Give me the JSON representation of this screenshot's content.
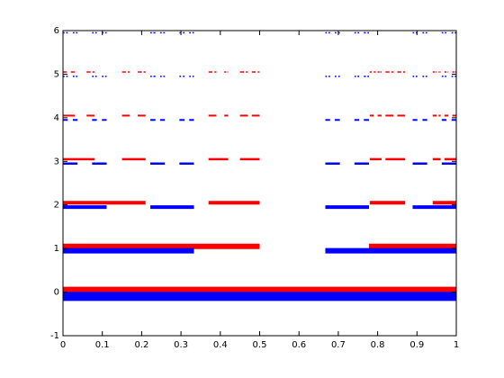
{
  "chart_data": {
    "type": "segments",
    "xlim": [
      0,
      1
    ],
    "xticks": [
      0,
      0.1,
      0.2,
      0.3,
      0.4,
      0.5,
      0.6,
      0.7,
      0.8,
      0.9,
      1
    ],
    "ylim": [
      -1,
      6
    ],
    "yticks": [
      -1,
      0,
      1,
      2,
      3,
      4,
      5,
      6
    ],
    "series": [
      {
        "color": "#ff0000",
        "levels": [
          {
            "y": 0.05,
            "segments": [
              [
                0,
                1
              ]
            ]
          },
          {
            "y": 1.05,
            "segments": [
              [
                0,
                0.5
              ],
              [
                0.778,
                1
              ]
            ]
          },
          {
            "y": 2.05,
            "segments": [
              [
                0,
                0.21
              ],
              [
                0.37,
                0.5
              ],
              [
                0.78,
                0.87
              ],
              [
                0.94,
                1
              ]
            ]
          },
          {
            "y": 3.05,
            "segments": [
              [
                0,
                0.08
              ],
              [
                0.15,
                0.21
              ],
              [
                0.37,
                0.42
              ],
              [
                0.45,
                0.5
              ],
              [
                0.78,
                0.81
              ],
              [
                0.82,
                0.87
              ],
              [
                0.94,
                0.96
              ],
              [
                0.97,
                1
              ]
            ]
          },
          {
            "y": 4.05,
            "segments": [
              [
                0,
                0.03
              ],
              [
                0.06,
                0.08
              ],
              [
                0.15,
                0.17
              ],
              [
                0.19,
                0.21
              ],
              [
                0.37,
                0.39
              ],
              [
                0.41,
                0.42
              ],
              [
                0.45,
                0.47
              ],
              [
                0.48,
                0.5
              ],
              [
                0.78,
                0.79
              ],
              [
                0.8,
                0.81
              ],
              [
                0.82,
                0.84
              ],
              [
                0.85,
                0.87
              ],
              [
                0.94,
                0.95
              ],
              [
                0.955,
                0.96
              ],
              [
                0.97,
                0.98
              ],
              [
                0.99,
                1
              ]
            ]
          },
          {
            "y": 5.05,
            "segments": [
              [
                0,
                0.01
              ],
              [
                0.02,
                0.03
              ],
              [
                0.06,
                0.07
              ],
              [
                0.075,
                0.08
              ],
              [
                0.15,
                0.16
              ],
              [
                0.165,
                0.17
              ],
              [
                0.19,
                0.2
              ],
              [
                0.205,
                0.21
              ],
              [
                0.37,
                0.38
              ],
              [
                0.385,
                0.39
              ],
              [
                0.41,
                0.415
              ],
              [
                0.418,
                0.42
              ],
              [
                0.45,
                0.46
              ],
              [
                0.465,
                0.47
              ],
              [
                0.48,
                0.49
              ],
              [
                0.495,
                0.5
              ],
              [
                0.78,
                0.785
              ],
              [
                0.79,
                0.795
              ],
              [
                0.8,
                0.805
              ],
              [
                0.807,
                0.81
              ],
              [
                0.82,
                0.83
              ],
              [
                0.835,
                0.84
              ],
              [
                0.85,
                0.86
              ],
              [
                0.865,
                0.87
              ],
              [
                0.94,
                0.945
              ],
              [
                0.948,
                0.95
              ],
              [
                0.955,
                0.958
              ],
              [
                0.959,
                0.96
              ],
              [
                0.97,
                0.975
              ],
              [
                0.978,
                0.98
              ],
              [
                0.99,
                0.995
              ],
              [
                0.997,
                1
              ]
            ]
          }
        ]
      },
      {
        "color": "#0000ff",
        "levels": [
          {
            "y": -0.1,
            "segments": [
              [
                0,
                1
              ]
            ]
          },
          {
            "y": 0.95,
            "segments": [
              [
                0,
                0.333
              ],
              [
                0.667,
                1
              ]
            ]
          },
          {
            "y": 1.95,
            "segments": [
              [
                0,
                0.111
              ],
              [
                0.222,
                0.333
              ],
              [
                0.667,
                0.778
              ],
              [
                0.889,
                1
              ]
            ]
          },
          {
            "y": 2.95,
            "segments": [
              [
                0,
                0.037
              ],
              [
                0.074,
                0.111
              ],
              [
                0.222,
                0.259
              ],
              [
                0.296,
                0.333
              ],
              [
                0.667,
                0.704
              ],
              [
                0.741,
                0.778
              ],
              [
                0.889,
                0.926
              ],
              [
                0.963,
                1
              ]
            ]
          },
          {
            "y": 3.95,
            "segments": [
              [
                0,
                0.012
              ],
              [
                0.025,
                0.037
              ],
              [
                0.074,
                0.086
              ],
              [
                0.099,
                0.111
              ],
              [
                0.222,
                0.235
              ],
              [
                0.247,
                0.259
              ],
              [
                0.296,
                0.309
              ],
              [
                0.321,
                0.333
              ],
              [
                0.667,
                0.679
              ],
              [
                0.691,
                0.704
              ],
              [
                0.741,
                0.753
              ],
              [
                0.765,
                0.778
              ],
              [
                0.889,
                0.901
              ],
              [
                0.914,
                0.926
              ],
              [
                0.963,
                0.975
              ],
              [
                0.988,
                1
              ]
            ]
          },
          {
            "y": 4.95,
            "segments": [
              [
                0,
                0.004
              ],
              [
                0.008,
                0.012
              ],
              [
                0.025,
                0.029
              ],
              [
                0.033,
                0.037
              ],
              [
                0.074,
                0.078
              ],
              [
                0.082,
                0.086
              ],
              [
                0.099,
                0.103
              ],
              [
                0.107,
                0.111
              ],
              [
                0.222,
                0.226
              ],
              [
                0.23,
                0.235
              ],
              [
                0.247,
                0.251
              ],
              [
                0.255,
                0.259
              ],
              [
                0.296,
                0.3
              ],
              [
                0.305,
                0.309
              ],
              [
                0.321,
                0.325
              ],
              [
                0.329,
                0.333
              ],
              [
                0.667,
                0.671
              ],
              [
                0.675,
                0.679
              ],
              [
                0.691,
                0.695
              ],
              [
                0.7,
                0.704
              ],
              [
                0.741,
                0.745
              ],
              [
                0.749,
                0.753
              ],
              [
                0.765,
                0.77
              ],
              [
                0.774,
                0.778
              ],
              [
                0.889,
                0.893
              ],
              [
                0.897,
                0.901
              ],
              [
                0.914,
                0.918
              ],
              [
                0.922,
                0.926
              ],
              [
                0.963,
                0.967
              ],
              [
                0.971,
                0.975
              ],
              [
                0.988,
                0.992
              ],
              [
                0.996,
                1
              ]
            ]
          },
          {
            "y": 5.95,
            "segments": [
              [
                0,
                0.004
              ],
              [
                0.008,
                0.012
              ],
              [
                0.025,
                0.029
              ],
              [
                0.033,
                0.037
              ],
              [
                0.074,
                0.078
              ],
              [
                0.082,
                0.086
              ],
              [
                0.099,
                0.103
              ],
              [
                0.107,
                0.111
              ],
              [
                0.222,
                0.226
              ],
              [
                0.23,
                0.235
              ],
              [
                0.247,
                0.251
              ],
              [
                0.255,
                0.259
              ],
              [
                0.296,
                0.3
              ],
              [
                0.305,
                0.309
              ],
              [
                0.321,
                0.325
              ],
              [
                0.329,
                0.333
              ],
              [
                0.667,
                0.671
              ],
              [
                0.675,
                0.679
              ],
              [
                0.691,
                0.695
              ],
              [
                0.7,
                0.704
              ],
              [
                0.741,
                0.745
              ],
              [
                0.749,
                0.753
              ],
              [
                0.765,
                0.77
              ],
              [
                0.774,
                0.778
              ],
              [
                0.889,
                0.893
              ],
              [
                0.897,
                0.901
              ],
              [
                0.914,
                0.918
              ],
              [
                0.922,
                0.926
              ],
              [
                0.963,
                0.967
              ],
              [
                0.971,
                0.975
              ],
              [
                0.988,
                0.992
              ],
              [
                0.996,
                1
              ]
            ]
          }
        ]
      }
    ]
  }
}
